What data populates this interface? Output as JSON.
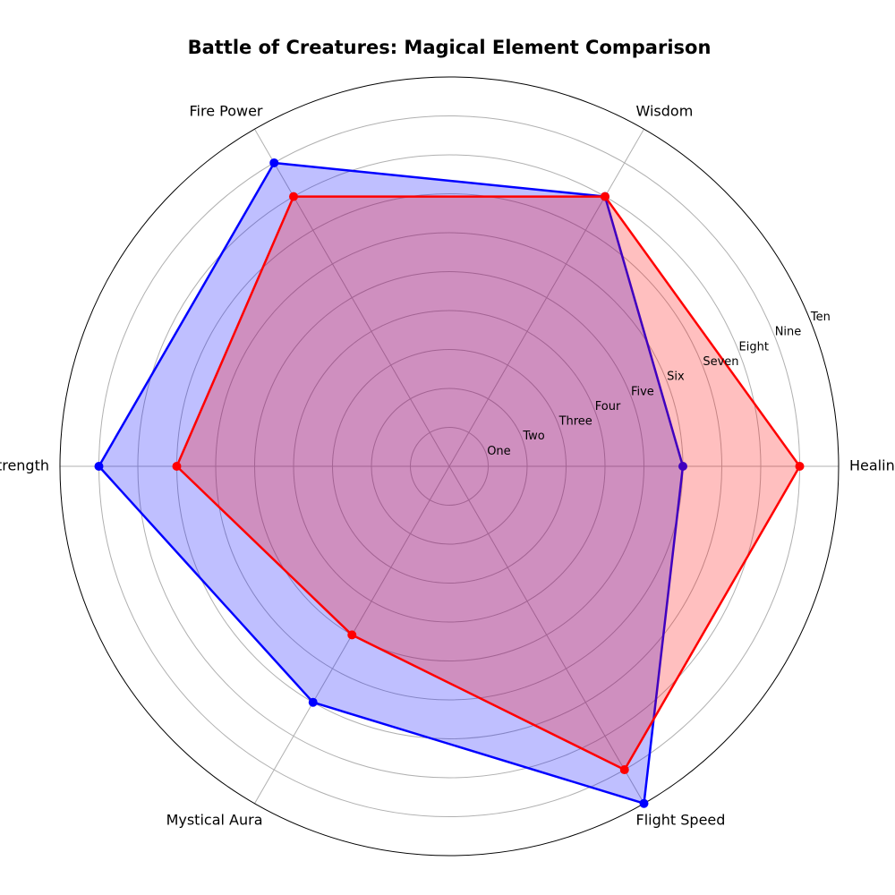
{
  "chart_data": {
    "type": "radar",
    "title": "Battle of Creatures: Magical Element Comparison",
    "categories": [
      "Healing",
      "Wisdom",
      "Fire Power",
      "Strength",
      "Mystical Aura",
      "Flight Speed"
    ],
    "r_ticks": [
      {
        "value": 1,
        "label": "One"
      },
      {
        "value": 2,
        "label": "Two"
      },
      {
        "value": 3,
        "label": "Three"
      },
      {
        "value": 4,
        "label": "Four"
      },
      {
        "value": 5,
        "label": "Five"
      },
      {
        "value": 6,
        "label": "Six"
      },
      {
        "value": 7,
        "label": "Seven"
      },
      {
        "value": 8,
        "label": "Eight"
      },
      {
        "value": 9,
        "label": "Nine"
      },
      {
        "value": 10,
        "label": "Ten"
      }
    ],
    "rlim": [
      0,
      10
    ],
    "grid": true,
    "legend": "none",
    "series": [
      {
        "color": "#0000ff",
        "fill": "#0000ff",
        "values": [
          6,
          8,
          9,
          9,
          7,
          10
        ]
      },
      {
        "color": "#ff0000",
        "fill": "#ff0000",
        "values": [
          9,
          8,
          8,
          7,
          5,
          9
        ]
      }
    ]
  }
}
